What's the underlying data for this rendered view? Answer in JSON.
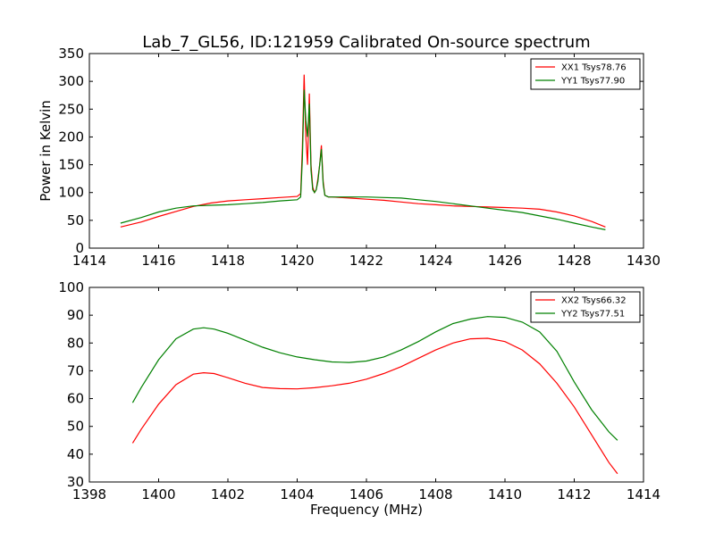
{
  "figure": {
    "title": "Lab_7_GL56, ID:121959 Calibrated On-source spectrum"
  },
  "chart_data": [
    {
      "type": "line",
      "title": "Lab_7_GL56, ID:121959 Calibrated On-source spectrum",
      "xlabel": "",
      "ylabel": "Power in Kelvin",
      "xlim": [
        1414,
        1430
      ],
      "ylim": [
        0,
        350
      ],
      "xticks": [
        "1414",
        "1416",
        "1418",
        "1420",
        "1422",
        "1424",
        "1426",
        "1428",
        "1430"
      ],
      "yticks": [
        "0",
        "50",
        "100",
        "150",
        "200",
        "250",
        "300",
        "350"
      ],
      "legend_position": "top-right",
      "grid": false,
      "series": [
        {
          "name": "XX1 Tsys78.76",
          "color": "#ff0000",
          "x": [
            1414.9,
            1415.5,
            1416.0,
            1416.5,
            1417.0,
            1417.5,
            1418.0,
            1418.5,
            1419.0,
            1419.5,
            1420.0,
            1420.1,
            1420.15,
            1420.2,
            1420.25,
            1420.3,
            1420.35,
            1420.4,
            1420.45,
            1420.5,
            1420.55,
            1420.6,
            1420.65,
            1420.7,
            1420.75,
            1420.8,
            1420.9,
            1421.0,
            1421.5,
            1422.0,
            1422.5,
            1423.0,
            1423.5,
            1424.0,
            1424.5,
            1425.0,
            1425.5,
            1426.0,
            1426.5,
            1427.0,
            1427.5,
            1428.0,
            1428.5,
            1428.9
          ],
          "y": [
            38,
            47,
            57,
            66,
            75,
            81,
            85,
            87,
            89,
            91,
            93,
            98,
            180,
            312,
            200,
            150,
            278,
            150,
            110,
            100,
            105,
            125,
            150,
            185,
            120,
            95,
            92,
            92,
            90,
            88,
            86,
            83,
            80,
            78,
            76,
            75,
            74,
            73,
            72,
            70,
            65,
            58,
            48,
            38
          ]
        },
        {
          "name": "YY1 Tsys77.90",
          "color": "#008000",
          "x": [
            1414.9,
            1415.5,
            1416.0,
            1416.5,
            1417.0,
            1417.5,
            1418.0,
            1418.5,
            1419.0,
            1419.5,
            1420.0,
            1420.1,
            1420.15,
            1420.2,
            1420.25,
            1420.3,
            1420.35,
            1420.4,
            1420.45,
            1420.5,
            1420.55,
            1420.6,
            1420.65,
            1420.7,
            1420.75,
            1420.8,
            1420.9,
            1421.0,
            1421.5,
            1422.0,
            1422.5,
            1423.0,
            1423.5,
            1424.0,
            1424.5,
            1425.0,
            1425.5,
            1426.0,
            1426.5,
            1427.0,
            1427.5,
            1428.0,
            1428.5,
            1428.9
          ],
          "y": [
            45,
            55,
            65,
            72,
            76,
            77,
            78,
            80,
            82,
            85,
            87,
            92,
            160,
            285,
            230,
            200,
            260,
            140,
            105,
            100,
            105,
            120,
            150,
            178,
            115,
            95,
            92,
            92,
            92,
            92,
            91,
            90,
            87,
            84,
            80,
            76,
            72,
            68,
            64,
            58,
            52,
            45,
            38,
            33
          ]
        }
      ]
    },
    {
      "type": "line",
      "title": "",
      "xlabel": "Frequency (MHz)",
      "ylabel": "",
      "xlim": [
        1398,
        1414
      ],
      "ylim": [
        30,
        100
      ],
      "xticks": [
        "1398",
        "1400",
        "1402",
        "1404",
        "1406",
        "1408",
        "1410",
        "1412",
        "1414"
      ],
      "yticks": [
        "30",
        "40",
        "50",
        "60",
        "70",
        "80",
        "90",
        "100"
      ],
      "legend_position": "top-right",
      "grid": false,
      "series": [
        {
          "name": "XX2 Tsys66.32",
          "color": "#ff0000",
          "x": [
            1399.25,
            1399.5,
            1400.0,
            1400.5,
            1401.0,
            1401.3,
            1401.6,
            1402.0,
            1402.5,
            1403.0,
            1403.5,
            1404.0,
            1404.5,
            1405.0,
            1405.5,
            1406.0,
            1406.5,
            1407.0,
            1407.5,
            1408.0,
            1408.5,
            1409.0,
            1409.5,
            1410.0,
            1410.5,
            1411.0,
            1411.5,
            1412.0,
            1412.5,
            1413.0,
            1413.25
          ],
          "y": [
            44,
            49,
            58,
            65,
            68.8,
            69.3,
            69,
            67.5,
            65.5,
            64,
            63.6,
            63.5,
            63.9,
            64.6,
            65.5,
            67,
            69,
            71.5,
            74.5,
            77.5,
            80,
            81.5,
            81.7,
            80.5,
            77.5,
            72.5,
            65.5,
            57,
            47,
            37,
            33
          ]
        },
        {
          "name": "YY2 Tsys77.51",
          "color": "#008000",
          "x": [
            1399.25,
            1399.5,
            1400.0,
            1400.5,
            1401.0,
            1401.3,
            1401.6,
            1402.0,
            1402.5,
            1403.0,
            1403.5,
            1404.0,
            1404.5,
            1405.0,
            1405.5,
            1406.0,
            1406.5,
            1407.0,
            1407.5,
            1408.0,
            1408.5,
            1409.0,
            1409.5,
            1410.0,
            1410.5,
            1411.0,
            1411.5,
            1412.0,
            1412.5,
            1413.0,
            1413.25
          ],
          "y": [
            58.5,
            64,
            74,
            81.5,
            85,
            85.5,
            85,
            83.5,
            81,
            78.5,
            76.5,
            75,
            74,
            73.2,
            73,
            73.5,
            75,
            77.5,
            80.5,
            84,
            87,
            88.6,
            89.5,
            89.2,
            87.5,
            84,
            77,
            66,
            56,
            48,
            45
          ]
        }
      ]
    }
  ]
}
